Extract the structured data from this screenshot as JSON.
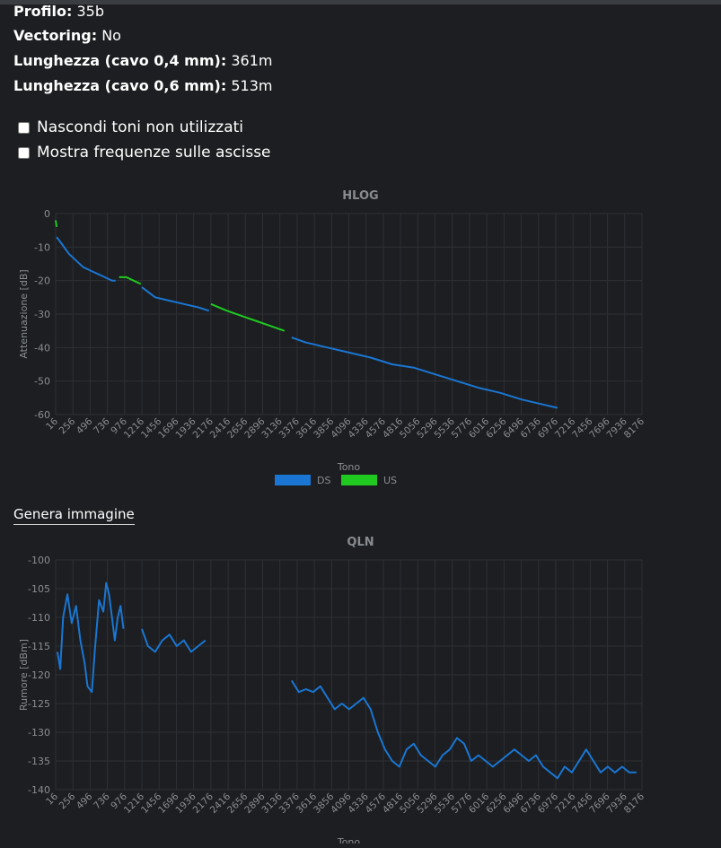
{
  "info": [
    {
      "label": "Profilo",
      "value": "35b"
    },
    {
      "label": "Vectoring",
      "value": "No"
    },
    {
      "label": "Lunghezza (cavo 0,4 mm)",
      "value": "361m"
    },
    {
      "label": "Lunghezza (cavo 0,6 mm)",
      "value": "513m"
    }
  ],
  "checkboxes": [
    {
      "label": "Nascondi toni non utilizzati",
      "checked": false
    },
    {
      "label": "Mostra frequenze sulle ascisse",
      "checked": false
    }
  ],
  "genera_immagine": "Genera immagine",
  "colors": {
    "ds": "#1a76d2",
    "us": "#20c920",
    "grid": "#2e3035",
    "tick": "#8a8d92"
  },
  "chart_data": [
    {
      "type": "line",
      "title": "HLOG",
      "xlabel": "Tono",
      "ylabel": "Attenuazione [dB]",
      "xlim": [
        16,
        8176
      ],
      "ylim": [
        -60,
        0
      ],
      "x_ticks": [
        "16",
        "256",
        "496",
        "736",
        "976",
        "1216",
        "1456",
        "1696",
        "1936",
        "2176",
        "2416",
        "2656",
        "2896",
        "3136",
        "3376",
        "3616",
        "3856",
        "4096",
        "4336",
        "4576",
        "4816",
        "5056",
        "5296",
        "5536",
        "5776",
        "6016",
        "6256",
        "6496",
        "6736",
        "6976",
        "7216",
        "7456",
        "7696",
        "7936",
        "8176"
      ],
      "y_ticks": [
        "0",
        "-10",
        "-20",
        "-30",
        "-40",
        "-50",
        "-60"
      ],
      "grid": true,
      "legend_position": "bottom",
      "series": [
        {
          "name": "DS",
          "segments": [
            {
              "x": [
                30,
                100,
                200,
                300,
                400,
                500,
                600,
                700,
                800,
                850
              ],
              "y": [
                -7,
                -9,
                -12,
                -14,
                -16,
                -17,
                -18,
                -19,
                -20,
                -20
              ]
            },
            {
              "x": [
                1216,
                1400,
                1600,
                1800,
                2000,
                2150
              ],
              "y": [
                -22,
                -25,
                -26,
                -27,
                -28,
                -29
              ]
            },
            {
              "x": [
                3300,
                3500,
                3800,
                4100,
                4400,
                4700,
                5000,
                5300,
                5600,
                5900,
                6200,
                6500,
                6800,
                7000
              ],
              "y": [
                -37,
                -38.5,
                -40,
                -41.5,
                -43,
                -45,
                -46,
                -48,
                -50,
                -52,
                -53.5,
                -55.5,
                -57,
                -58
              ]
            }
          ]
        },
        {
          "name": "US",
          "segments": [
            {
              "x": [
                16,
                30
              ],
              "y": [
                -2,
                -4
              ]
            },
            {
              "x": [
                900,
                1000,
                1100,
                1200
              ],
              "y": [
                -19,
                -19,
                -20,
                -21
              ]
            },
            {
              "x": [
                2176,
                2400,
                2600,
                2800,
                3000,
                3200
              ],
              "y": [
                -27,
                -29,
                -30.5,
                -32,
                -33.5,
                -35
              ]
            }
          ]
        }
      ]
    },
    {
      "type": "line",
      "title": "QLN",
      "xlabel": "Tono",
      "ylabel": "Rumore [dBm]",
      "xlim": [
        16,
        8176
      ],
      "ylim": [
        -140,
        -100
      ],
      "x_ticks": [
        "16",
        "256",
        "496",
        "736",
        "976",
        "1216",
        "1456",
        "1696",
        "1936",
        "2176",
        "2416",
        "2656",
        "2896",
        "3136",
        "3376",
        "3616",
        "3856",
        "4096",
        "4336",
        "4576",
        "4816",
        "5056",
        "5296",
        "5536",
        "5776",
        "6016",
        "6256",
        "6496",
        "6736",
        "6976",
        "7216",
        "7456",
        "7696",
        "7936",
        "8176"
      ],
      "y_ticks": [
        "-100",
        "-105",
        "-110",
        "-115",
        "-120",
        "-125",
        "-130",
        "-135",
        "-140"
      ],
      "grid": true,
      "series": [
        {
          "name": "DS",
          "segments": [
            {
              "x": [
                40,
                80,
                120,
                180,
                240,
                300,
                360,
                420,
                460,
                520,
                560,
                620,
                680,
                720,
                760,
                800,
                840,
                880,
                920,
                960
              ],
              "y": [
                -116,
                -119,
                -110,
                -106,
                -111,
                -108,
                -114,
                -118,
                -122,
                -123,
                -116,
                -107,
                -109,
                -104,
                -106,
                -110,
                -114,
                -110,
                -108,
                -112
              ]
            },
            {
              "x": [
                1216,
                1300,
                1400,
                1500,
                1600,
                1700,
                1800,
                1900,
                2000,
                2100
              ],
              "y": [
                -112,
                -115,
                -116,
                -114,
                -113,
                -115,
                -114,
                -116,
                -115,
                -114
              ]
            },
            {
              "x": [
                3300,
                3400,
                3500,
                3600,
                3700,
                3800,
                3900,
                4000,
                4100,
                4200,
                4300,
                4400,
                4500,
                4600,
                4700,
                4800,
                4900,
                5000,
                5100,
                5200,
                5300,
                5400,
                5500,
                5600,
                5700,
                5800,
                5900,
                6000,
                6100,
                6200,
                6300,
                6400,
                6500,
                6600,
                6700,
                6800,
                6900,
                7000,
                7100,
                7200,
                7300,
                7400,
                7500,
                7600,
                7700,
                7800,
                7900,
                8000,
                8100
              ],
              "y": [
                -121,
                -123,
                -122.5,
                -123,
                -122,
                -124,
                -126,
                -125,
                -126,
                -125,
                -124,
                -126,
                -130,
                -133,
                -135,
                -136,
                -133,
                -132,
                -134,
                -135,
                -136,
                -134,
                -133,
                -131,
                -132,
                -135,
                -134,
                -135,
                -136,
                -135,
                -134,
                -133,
                -134,
                -135,
                -134,
                -136,
                -137,
                -138,
                -136,
                -137,
                -135,
                -133,
                -135,
                -137,
                -136,
                -137,
                -136,
                -137,
                -137
              ]
            }
          ]
        }
      ]
    }
  ]
}
